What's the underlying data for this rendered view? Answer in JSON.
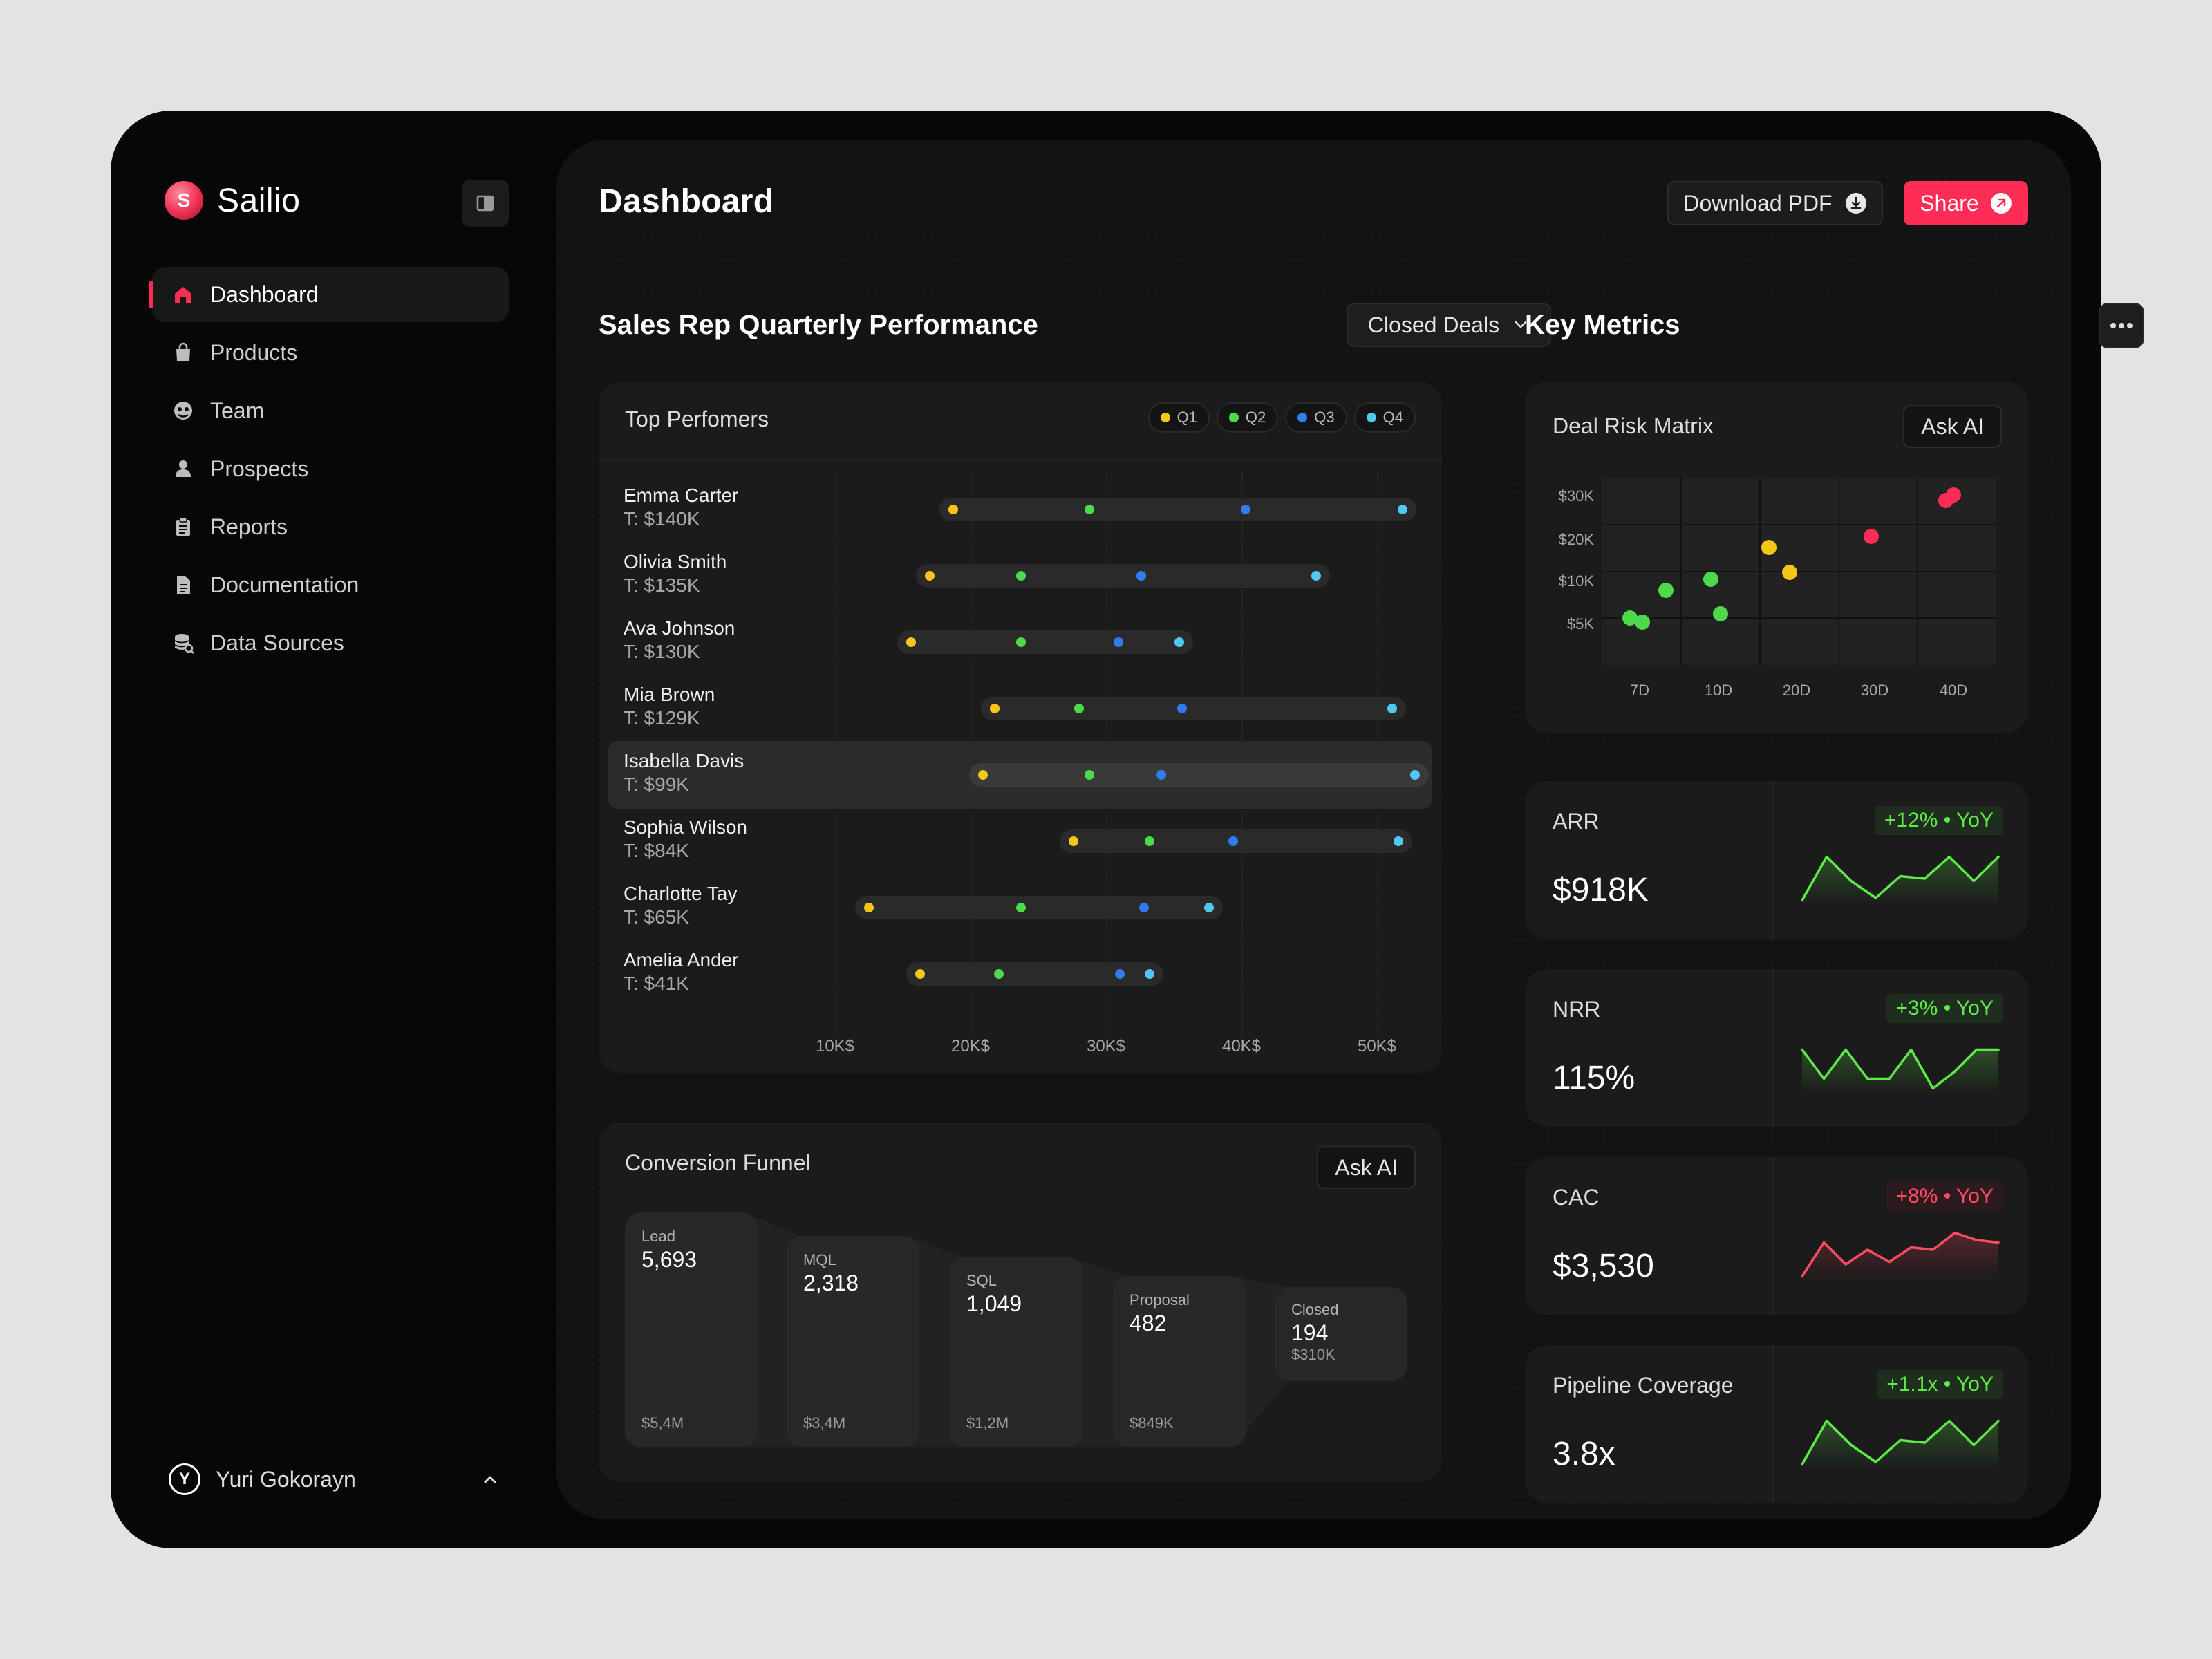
{
  "app": {
    "name": "Sailio",
    "logo_letter": "S"
  },
  "sidebar": {
    "items": [
      {
        "label": "Dashboard",
        "icon": "home-icon",
        "active": true
      },
      {
        "label": "Products",
        "icon": "bag-icon"
      },
      {
        "label": "Team",
        "icon": "team-icon"
      },
      {
        "label": "Prospects",
        "icon": "person-icon"
      },
      {
        "label": "Reports",
        "icon": "clipboard-icon"
      },
      {
        "label": "Documentation",
        "icon": "document-icon"
      },
      {
        "label": "Data Sources",
        "icon": "database-icon"
      }
    ],
    "user": {
      "name": "Yuri Gokorayn",
      "avatar_letter": "Y"
    }
  },
  "header": {
    "title": "Dashboard",
    "download_label": "Download PDF",
    "share_label": "Share"
  },
  "colors": {
    "accent": "#ff2d55",
    "q1": "#f5c518",
    "q2": "#4cd94a",
    "q3": "#2f7df0",
    "q4": "#4fc9f0",
    "positive": "#5ee84a",
    "negative": "#ff4a63"
  },
  "sales": {
    "title": "Sales Rep Quarterly Performance",
    "filter": "Closed Deals",
    "card_title": "Top Perfomers",
    "legend": [
      "Q1",
      "Q2",
      "Q3",
      "Q4"
    ],
    "x_ticks": [
      "10K$",
      "20K$",
      "30K$",
      "40K$",
      "50K$"
    ],
    "highlighted_rep": "Isabella Davis",
    "reps": [
      {
        "name": "Emma Carter",
        "target": "T: $140K",
        "q": [
          18.7,
          28.8,
          40.3,
          51.9
        ]
      },
      {
        "name": "Olivia Smith",
        "target": "T: $135K",
        "q": [
          17.0,
          23.7,
          32.6,
          45.5
        ]
      },
      {
        "name": "Ava Johnson",
        "target": "T: $130K",
        "q": [
          15.6,
          23.7,
          30.9,
          35.4
        ]
      },
      {
        "name": "Mia Brown",
        "target": "T: $129K",
        "q": [
          21.8,
          28.0,
          35.6,
          51.1
        ]
      },
      {
        "name": "Isabella Davis",
        "target": "T: $99K",
        "q": [
          20.9,
          28.8,
          34.1,
          52.8
        ]
      },
      {
        "name": "Sophia Wilson",
        "target": "T: $84K",
        "q": [
          27.6,
          33.2,
          39.4,
          51.6
        ]
      },
      {
        "name": "Charlotte Tay",
        "target": "T: $65K",
        "q": [
          12.5,
          23.7,
          32.8,
          37.6
        ]
      },
      {
        "name": "Amelia Ander",
        "target": "T: $41K",
        "q": [
          16.3,
          22.1,
          31.0,
          33.2
        ]
      }
    ]
  },
  "funnel": {
    "title": "Conversion Funnel",
    "ask_label": "Ask AI",
    "stages": [
      {
        "label": "Lead",
        "count": "5,693",
        "value": "$5,4M"
      },
      {
        "label": "MQL",
        "count": "2,318",
        "value": "$3,4M"
      },
      {
        "label": "SQL",
        "count": "1,049",
        "value": "$1,2M"
      },
      {
        "label": "Proposal",
        "count": "482",
        "value": "$849K"
      },
      {
        "label": "Closed",
        "count": "194",
        "value": "$310K"
      }
    ]
  },
  "metrics": {
    "title": "Key Metrics",
    "risk": {
      "title": "Deal Risk Matrix",
      "ask_label": "Ask AI",
      "y_ticks": [
        "$30K",
        "$20K",
        "$10K",
        "$5K"
      ],
      "x_ticks": [
        "7D",
        "10D",
        "20D",
        "30D",
        "40D"
      ],
      "points": [
        {
          "c": "#4cd94a"
        },
        {
          "c": "#4cd94a"
        },
        {
          "c": "#4cd94a"
        },
        {
          "c": "#4cd94a"
        },
        {
          "c": "#4cd94a"
        },
        {
          "c": "#f5c518"
        },
        {
          "c": "#f5c518"
        },
        {
          "c": "#ff2d55"
        },
        {
          "c": "#ff2d55"
        },
        {
          "c": "#ff2d55"
        }
      ]
    },
    "kpis": [
      {
        "label": "ARR",
        "value": "$918K",
        "change": "+12% • YoY",
        "trend": "up",
        "spark": [
          0.05,
          0.95,
          0.45,
          0.1,
          0.55,
          0.5,
          0.95,
          0.45,
          0.95
        ]
      },
      {
        "label": "NRR",
        "value": "115%",
        "change": "+3% • YoY",
        "trend": "up",
        "spark": [
          0.85,
          0.25,
          0.85,
          0.25,
          0.25,
          0.85,
          0.05,
          0.4,
          0.85,
          0.85
        ]
      },
      {
        "label": "CAC",
        "value": "$3,530",
        "change": "+8% • YoY",
        "trend": "down",
        "spark": [
          0.05,
          0.75,
          0.3,
          0.6,
          0.35,
          0.65,
          0.6,
          0.95,
          0.8,
          0.75
        ]
      },
      {
        "label": "Pipeline Coverage",
        "value": "3.8x",
        "change": "+1.1x • YoY",
        "trend": "up",
        "spark": [
          0.05,
          0.95,
          0.45,
          0.1,
          0.55,
          0.5,
          0.95,
          0.45,
          0.95
        ]
      }
    ]
  }
}
